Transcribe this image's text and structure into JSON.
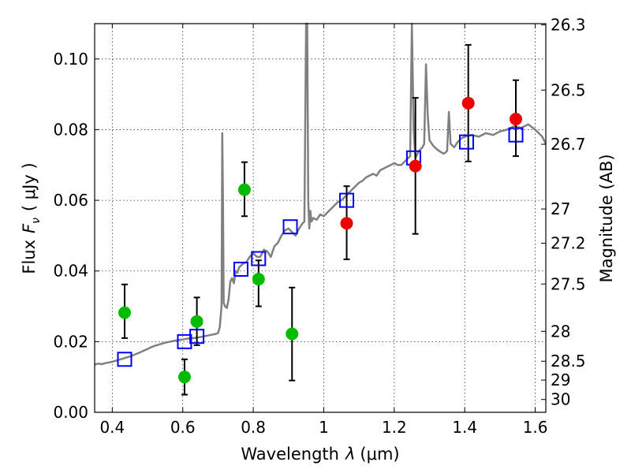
{
  "chart_data": {
    "type": "scatter",
    "xlabel_prefix": "Wavelength",
    "xlabel_symbol": "λ",
    "xlabel_units": "(μm)",
    "ylabel_prefix": "Flux",
    "ylabel_symbol": "F",
    "ylabel_sub": "ν",
    "ylabel_units": "( μJy )",
    "y2label": "Magnitude (AB)",
    "xlim": [
      0.35,
      1.63
    ],
    "ylim": [
      0.0,
      0.11
    ],
    "grid": true,
    "x_ticks": [
      "0.4",
      "0.6",
      "0.8",
      "1",
      "1.2",
      "1.4",
      "1.6"
    ],
    "x_tick_values": [
      0.4,
      0.6,
      0.8,
      1.0,
      1.2,
      1.4,
      1.6
    ],
    "y_ticks": [
      "0.00",
      "0.02",
      "0.04",
      "0.06",
      "0.08",
      "0.10"
    ],
    "y_tick_values": [
      0.0,
      0.02,
      0.04,
      0.06,
      0.08,
      0.1
    ],
    "y2_ticks": [
      "26.3",
      "26.5",
      "26.7",
      "27",
      "27.2",
      "27.5",
      "28",
      "28.5",
      "29",
      "30"
    ],
    "y2_tick_values": [
      26.3,
      26.5,
      26.7,
      27.0,
      27.2,
      27.5,
      28.0,
      28.5,
      29.0,
      30.0
    ],
    "spectrum": {
      "color": "#808080",
      "x": [
        0.35,
        0.36,
        0.37,
        0.38,
        0.39,
        0.4,
        0.41,
        0.42,
        0.43,
        0.44,
        0.45,
        0.46,
        0.47,
        0.48,
        0.49,
        0.5,
        0.51,
        0.52,
        0.53,
        0.54,
        0.55,
        0.56,
        0.57,
        0.58,
        0.59,
        0.6,
        0.61,
        0.62,
        0.63,
        0.64,
        0.65,
        0.66,
        0.67,
        0.68,
        0.69,
        0.7,
        0.705,
        0.71,
        0.712,
        0.714,
        0.716,
        0.72,
        0.725,
        0.73,
        0.735,
        0.74,
        0.745,
        0.75,
        0.755,
        0.76,
        0.77,
        0.78,
        0.79,
        0.8,
        0.81,
        0.82,
        0.83,
        0.84,
        0.85,
        0.86,
        0.87,
        0.88,
        0.89,
        0.9,
        0.91,
        0.92,
        0.93,
        0.94,
        0.945,
        0.95,
        0.953,
        0.956,
        0.959,
        0.962,
        0.965,
        0.97,
        0.98,
        0.99,
        1.0,
        1.01,
        1.02,
        1.03,
        1.04,
        1.05,
        1.06,
        1.07,
        1.08,
        1.09,
        1.1,
        1.11,
        1.12,
        1.13,
        1.14,
        1.15,
        1.16,
        1.17,
        1.18,
        1.19,
        1.2,
        1.21,
        1.22,
        1.23,
        1.24,
        1.245,
        1.25,
        1.255,
        1.26,
        1.265,
        1.27,
        1.275,
        1.28,
        1.285,
        1.29,
        1.295,
        1.3,
        1.31,
        1.32,
        1.33,
        1.34,
        1.345,
        1.35,
        1.355,
        1.36,
        1.37,
        1.38,
        1.39,
        1.4,
        1.42,
        1.44,
        1.46,
        1.48,
        1.5,
        1.52,
        1.54,
        1.56,
        1.58,
        1.6,
        1.62,
        1.63
      ],
      "y": [
        0.0135,
        0.0138,
        0.0136,
        0.0139,
        0.0141,
        0.0143,
        0.0146,
        0.0149,
        0.0152,
        0.0155,
        0.0158,
        0.0162,
        0.0166,
        0.017,
        0.0175,
        0.0179,
        0.0184,
        0.0188,
        0.0191,
        0.0194,
        0.0197,
        0.0199,
        0.0201,
        0.0203,
        0.0205,
        0.0206,
        0.0208,
        0.0209,
        0.021,
        0.0211,
        0.0213,
        0.0215,
        0.0217,
        0.0219,
        0.0221,
        0.0224,
        0.024,
        0.03,
        0.079,
        0.06,
        0.031,
        0.03,
        0.0295,
        0.032,
        0.037,
        0.038,
        0.0365,
        0.04,
        0.0395,
        0.041,
        0.042,
        0.0425,
        0.044,
        0.045,
        0.044,
        0.044,
        0.046,
        0.0455,
        0.044,
        0.047,
        0.048,
        0.05,
        0.0515,
        0.052,
        0.051,
        0.05,
        0.052,
        0.0535,
        0.054,
        0.11,
        0.11,
        0.06,
        0.052,
        0.057,
        0.054,
        0.055,
        0.0545,
        0.056,
        0.0555,
        0.0565,
        0.0575,
        0.0585,
        0.0595,
        0.06,
        0.061,
        0.062,
        0.063,
        0.064,
        0.065,
        0.0655,
        0.0665,
        0.067,
        0.0675,
        0.067,
        0.0685,
        0.069,
        0.0695,
        0.07,
        0.0705,
        0.07,
        0.07,
        0.071,
        0.072,
        0.0725,
        0.11,
        0.08,
        0.072,
        0.073,
        0.074,
        0.0745,
        0.075,
        0.076,
        0.0985,
        0.084,
        0.077,
        0.0755,
        0.0745,
        0.0738,
        0.0732,
        0.0735,
        0.074,
        0.085,
        0.076,
        0.075,
        0.0765,
        0.0775,
        0.078,
        0.0785,
        0.078,
        0.079,
        0.0785,
        0.0795,
        0.08,
        0.081,
        0.0805,
        0.0815,
        0.08,
        0.078,
        0.076
      ]
    },
    "model_points": {
      "marker": "open-square",
      "color": "#0000ff",
      "x": [
        0.435,
        0.605,
        0.64,
        0.765,
        0.815,
        0.905,
        1.065,
        1.255,
        1.405,
        1.545
      ],
      "y": [
        0.015,
        0.02,
        0.0215,
        0.0405,
        0.0435,
        0.0525,
        0.06,
        0.072,
        0.0765,
        0.0785
      ]
    },
    "green_points": {
      "marker": "filled-circle",
      "color": "#00bb00",
      "x": [
        0.435,
        0.605,
        0.64,
        0.775,
        0.815,
        0.91
      ],
      "y": [
        0.0282,
        0.01,
        0.0257,
        0.063,
        0.0377,
        0.0222
      ],
      "yerr_low": [
        0.021,
        0.005,
        0.019,
        0.0555,
        0.03,
        0.009
      ],
      "yerr_high": [
        0.0362,
        0.015,
        0.0325,
        0.0708,
        0.043,
        0.0353
      ]
    },
    "red_points": {
      "marker": "filled-circle",
      "color": "#ee0000",
      "x": [
        1.065,
        1.26,
        1.41,
        1.545
      ],
      "y": [
        0.0535,
        0.0697,
        0.0875,
        0.083
      ],
      "yerr_low": [
        0.0433,
        0.0505,
        0.071,
        0.0725
      ],
      "yerr_high": [
        0.064,
        0.089,
        0.104,
        0.094
      ]
    }
  }
}
